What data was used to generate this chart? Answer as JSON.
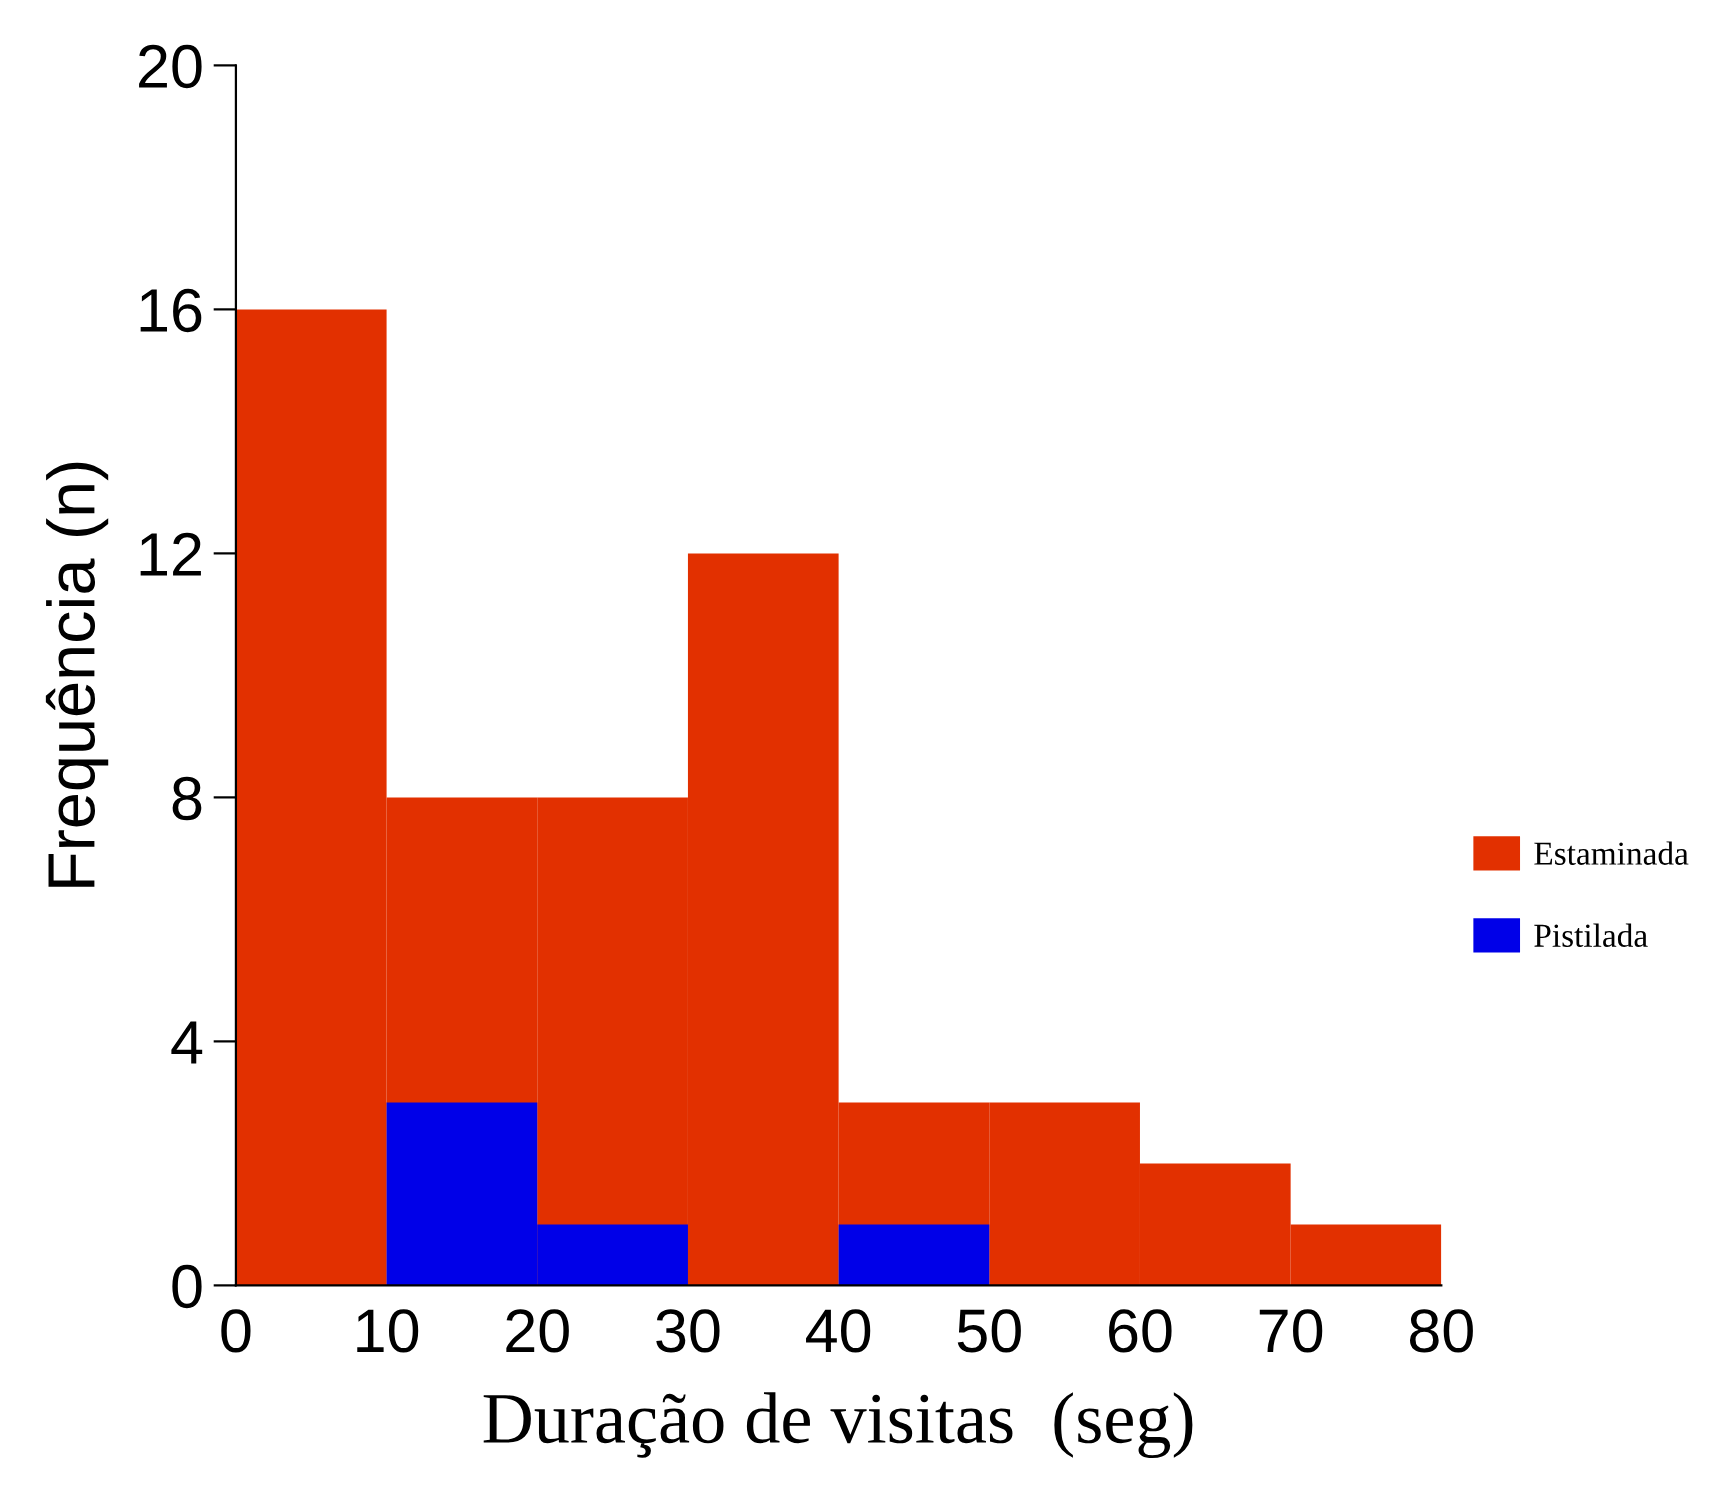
{
  "chart_data": {
    "type": "histogram",
    "xlabel": "Duração de visitas  (seg)",
    "ylabel": "Frequência (n)",
    "bins": [
      0,
      10,
      20,
      30,
      40,
      50,
      60,
      70,
      80
    ],
    "series": [
      {
        "name": "Estaminada",
        "color": "#e23000",
        "values": [
          16,
          8,
          8,
          12,
          3,
          3,
          2,
          1
        ]
      },
      {
        "name": "Pistilada",
        "color": "#0000e8",
        "values": [
          0,
          3,
          1,
          0,
          1,
          0,
          0,
          0
        ]
      }
    ],
    "xlim": [
      0,
      80
    ],
    "xticks": [
      0,
      10,
      20,
      30,
      40,
      50,
      60,
      70,
      80
    ],
    "ylim": [
      0,
      20
    ],
    "yticks": [
      0,
      4,
      8,
      12,
      16,
      20
    ],
    "grid": false,
    "legend": "right"
  }
}
